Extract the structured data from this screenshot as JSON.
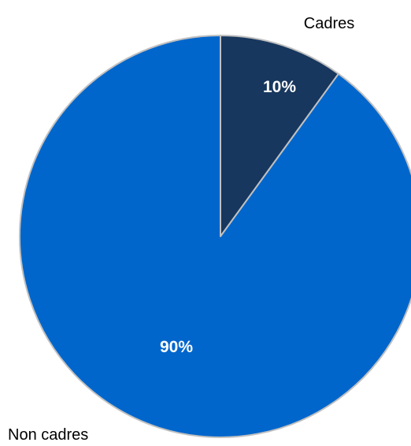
{
  "chart_data": {
    "type": "pie",
    "categories": [
      "Cadres",
      "Non cadres"
    ],
    "values": [
      10,
      90
    ],
    "data_labels": [
      "10%",
      "90%"
    ],
    "colors": [
      "#17375e",
      "#0066cc"
    ],
    "slice_border_color": "#c0c0c0",
    "start": "top, clockwise",
    "title": "",
    "legend": "none"
  }
}
